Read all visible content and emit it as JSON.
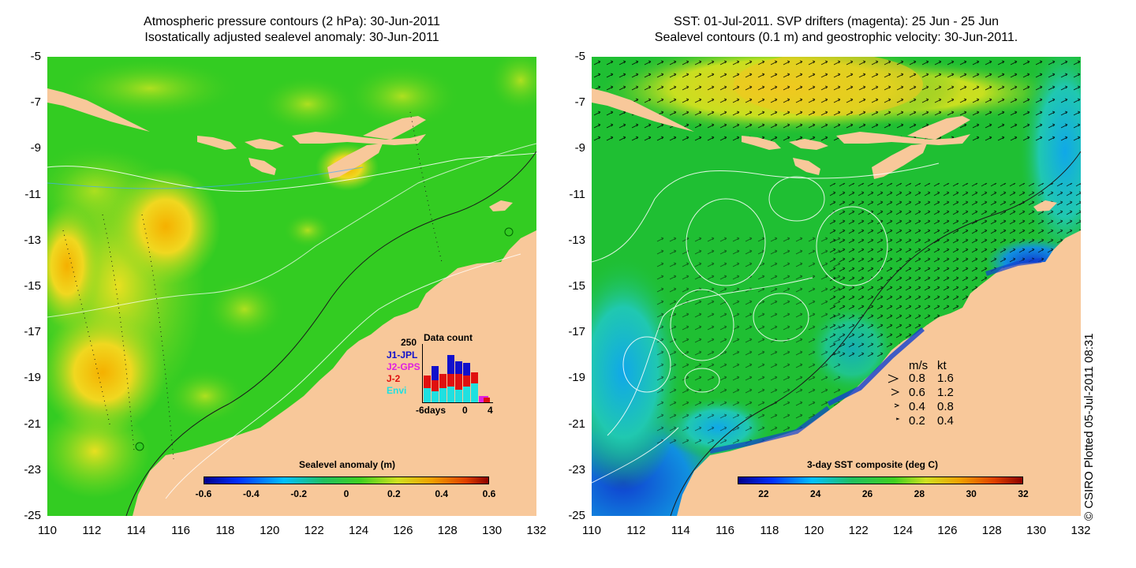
{
  "left_panel": {
    "title_line1": "Atmospheric pressure contours (2 hPa): 30-Jun-2011",
    "title_line2": "Isostatically adjusted sealevel anomaly: 30-Jun-2011",
    "colorbar": {
      "title": "Sealevel anomaly (m)",
      "ticks": [
        "-0.6",
        "-0.4",
        "-0.2",
        "0",
        "0.2",
        "0.4",
        "0.6"
      ],
      "range": [
        -0.6,
        0.6
      ]
    },
    "inset": {
      "title": "Data count",
      "ymax_label": "250",
      "missions": [
        {
          "name": "J1-JPL",
          "color": "#1010cc"
        },
        {
          "name": "J2-GPS",
          "color": "#e020e0"
        },
        {
          "name": "J-2",
          "color": "#e01010"
        },
        {
          "name": "Envi",
          "color": "#20e0e0"
        }
      ],
      "x_labels": [
        "-6days",
        "0",
        "4"
      ]
    }
  },
  "right_panel": {
    "title_line1": "SST: 01-Jul-2011. SVP drifters (magenta): 25 Jun - 25 Jun",
    "title_line2": "Sealevel contours (0.1 m) and geostrophic velocity: 30-Jun-2011.",
    "colorbar": {
      "title": "3-day SST composite (deg C)",
      "ticks": [
        "22",
        "24",
        "26",
        "28",
        "30",
        "32"
      ],
      "range": [
        21,
        32
      ]
    },
    "velocity_legend": {
      "header_ms": "m/s",
      "header_kt": "kt",
      "rows": [
        {
          "ms": "0.8",
          "kt": "1.6"
        },
        {
          "ms": "0.6",
          "kt": "1.2"
        },
        {
          "ms": "0.4",
          "kt": "0.8"
        },
        {
          "ms": "0.2",
          "kt": "0.4"
        }
      ]
    }
  },
  "axes": {
    "y_ticks": [
      "-5",
      "-7",
      "-9",
      "-11",
      "-13",
      "-15",
      "-17",
      "-19",
      "-21",
      "-23",
      "-25"
    ],
    "x_ticks": [
      "110",
      "112",
      "114",
      "116",
      "118",
      "120",
      "122",
      "124",
      "126",
      "128",
      "130",
      "132"
    ],
    "lon_range": [
      110,
      132
    ],
    "lat_range": [
      -25,
      -5
    ]
  },
  "credit": "© CSIRO Plotted 05-Jul-2011 08:31",
  "colors": {
    "land": "#f8c89a",
    "ocean_left": "#33cc22",
    "ocean_right": "#1fbf33",
    "warm_anomaly": "#f0d020",
    "cool_coast": "#1060e0"
  }
}
